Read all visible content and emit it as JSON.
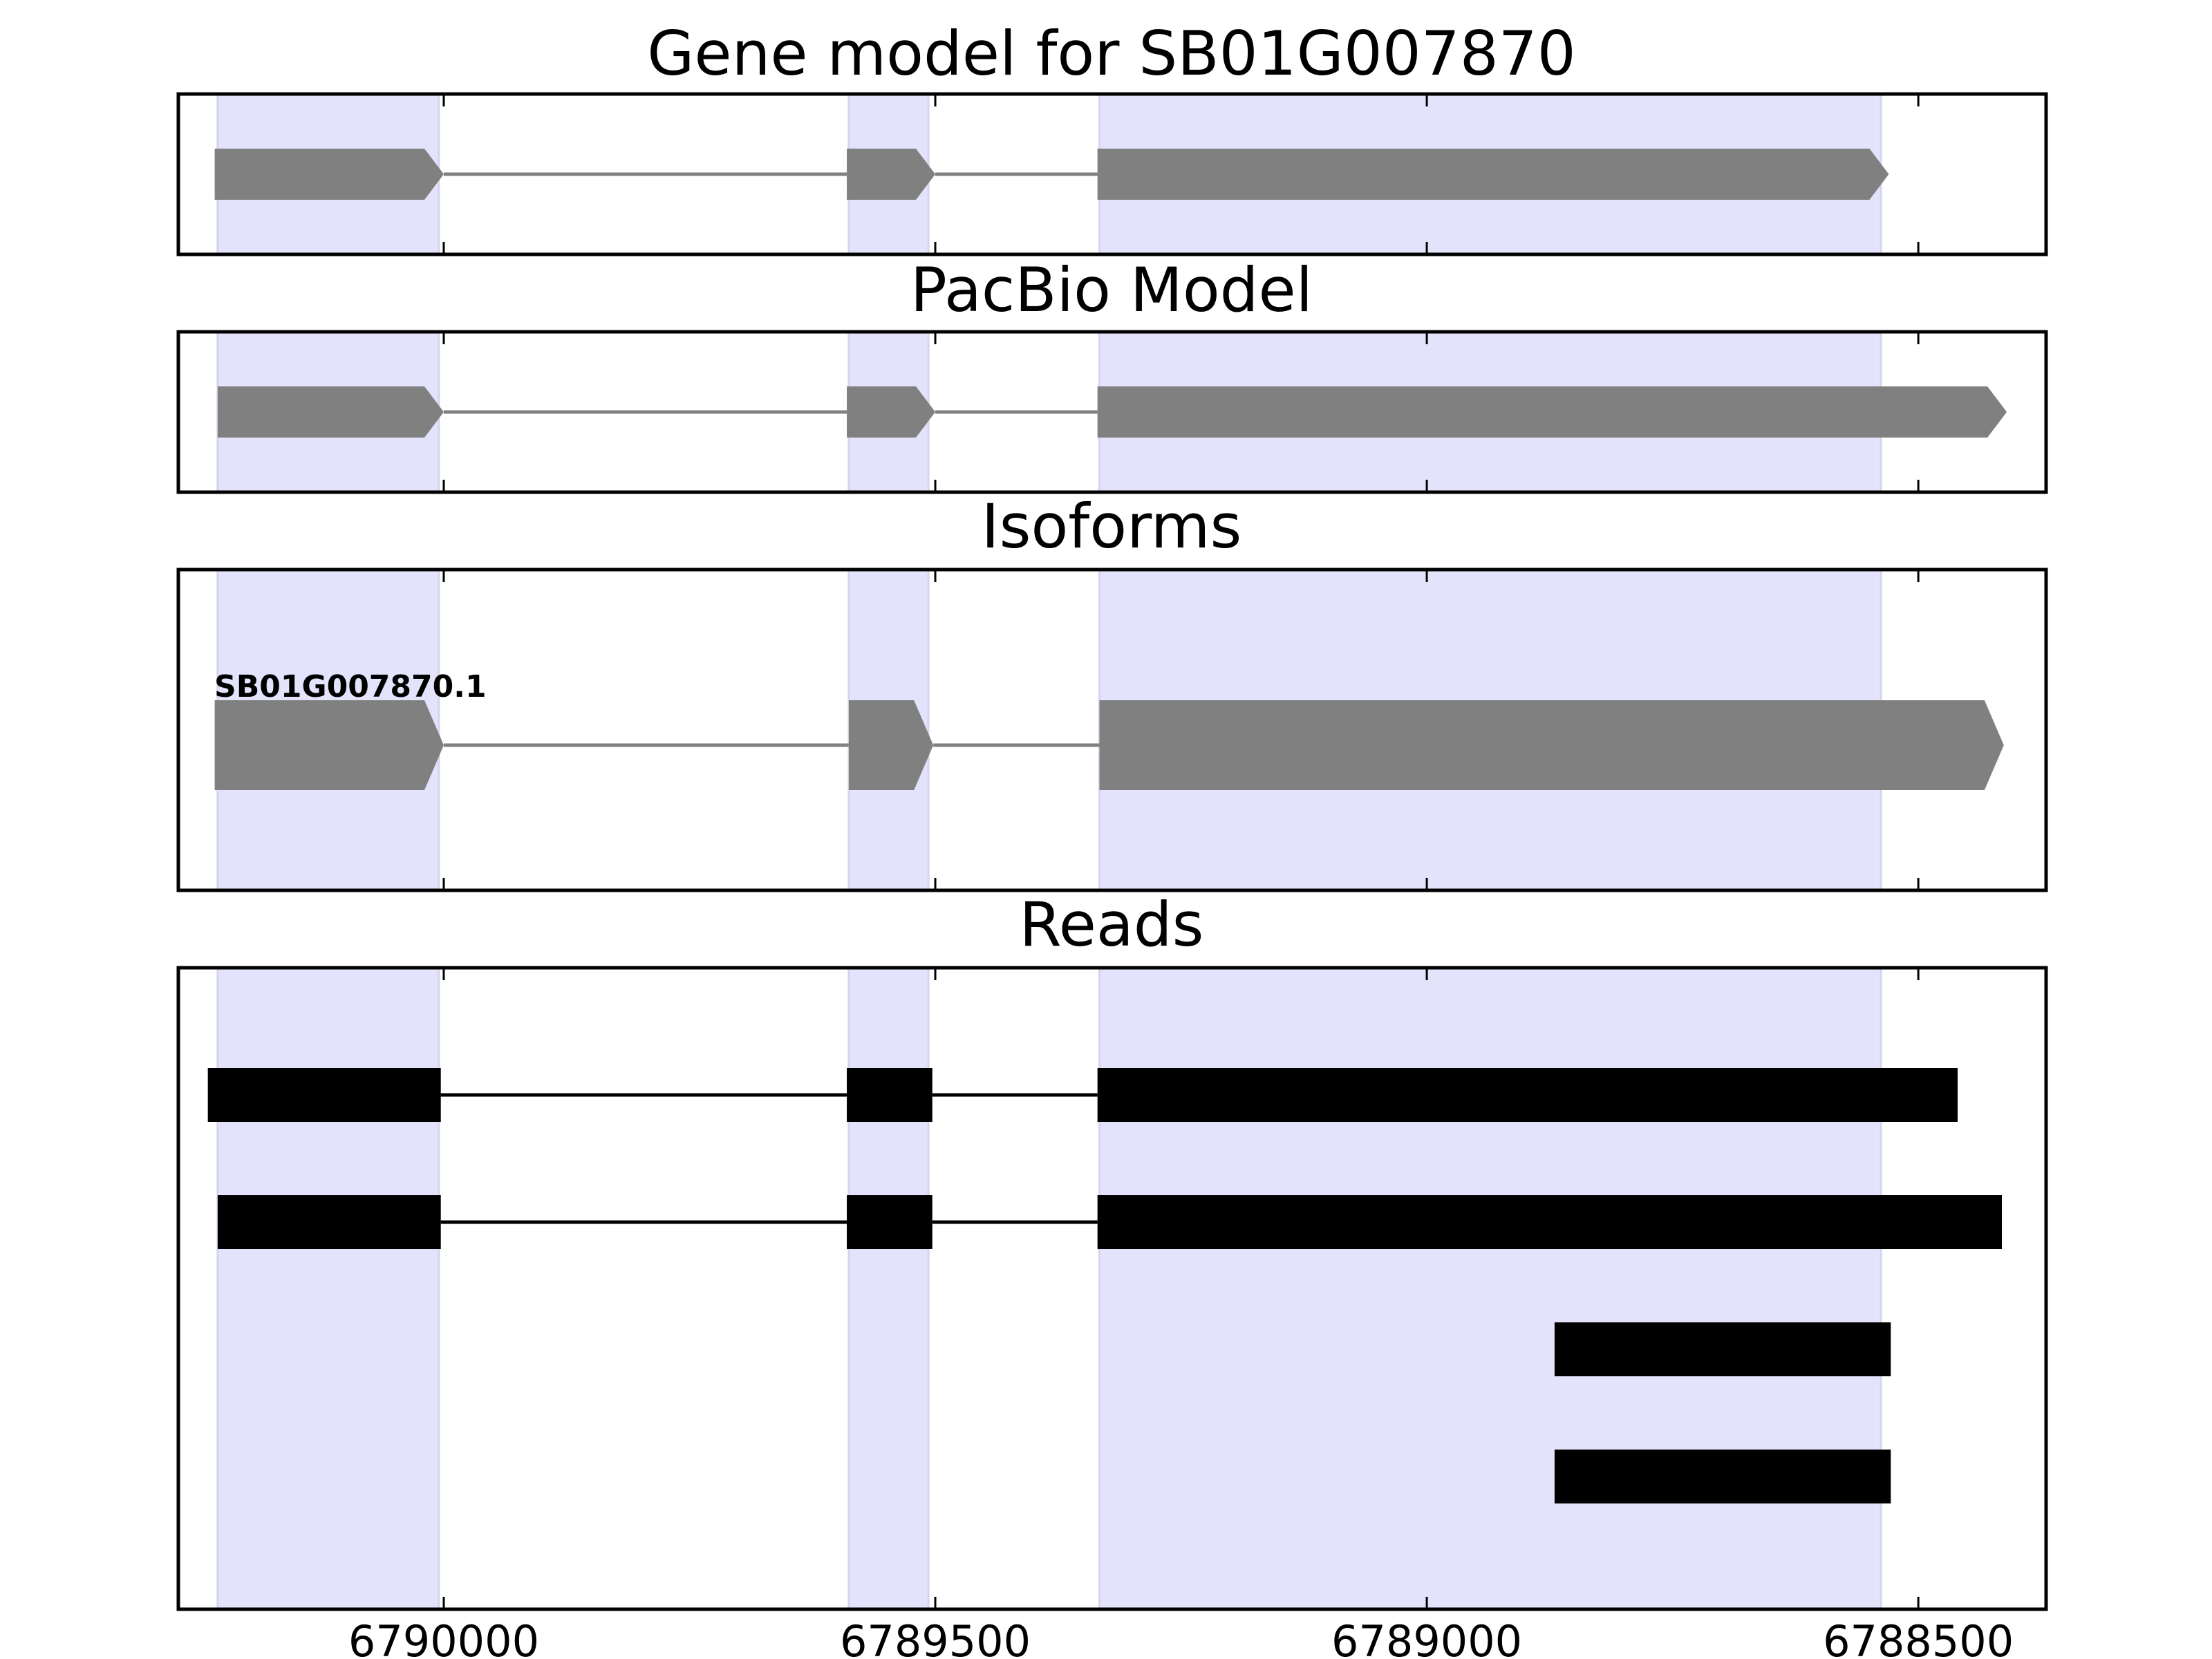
{
  "chart_data": {
    "type": "gene-track",
    "x_axis": {
      "reversed": true,
      "range": [
        6790270,
        6788370
      ],
      "ticks": [
        6790000,
        6789500,
        6789000,
        6788500
      ],
      "tick_labels": [
        "6790000",
        "6789500",
        "6789000",
        "6788500"
      ],
      "grid": false
    },
    "highlight_color": "#e3e3fc",
    "exon_bands": [
      {
        "start": 6790230,
        "end": 6790005
      },
      {
        "start": 6789588,
        "end": 6789507
      },
      {
        "start": 6789333,
        "end": 6788538
      }
    ],
    "panels": [
      {
        "id": "gene-model",
        "title": "Gene model for SB01G007870",
        "style": "arrow",
        "color": "#808080",
        "label": "",
        "exons": [
          {
            "start": 6790233,
            "end": 6790000
          },
          {
            "start": 6789590,
            "end": 6789500
          },
          {
            "start": 6789335,
            "end": 6788530
          }
        ]
      },
      {
        "id": "pacbio-model",
        "title": "PacBio Model",
        "style": "arrow",
        "color": "#808080",
        "label": "",
        "exons": [
          {
            "start": 6790230,
            "end": 6790000
          },
          {
            "start": 6789590,
            "end": 6789500
          },
          {
            "start": 6789335,
            "end": 6788410
          }
        ]
      },
      {
        "id": "isoforms",
        "title": "Isoforms",
        "style": "arrow",
        "color": "#808080",
        "label": "SB01G007870.1",
        "exons": [
          {
            "start": 6790233,
            "end": 6790000
          },
          {
            "start": 6789588,
            "end": 6789502
          },
          {
            "start": 6789333,
            "end": 6788413
          }
        ]
      },
      {
        "id": "reads",
        "title": "Reads",
        "style": "block",
        "color": "#000000",
        "label": "",
        "reads": [
          [
            {
              "start": 6790240,
              "end": 6790003
            },
            {
              "start": 6789590,
              "end": 6789503
            },
            {
              "start": 6789335,
              "end": 6788460
            }
          ],
          [
            {
              "start": 6790230,
              "end": 6790003
            },
            {
              "start": 6789590,
              "end": 6789503
            },
            {
              "start": 6789335,
              "end": 6788415
            }
          ],
          [
            {
              "start": 6788870,
              "end": 6788528
            }
          ],
          [
            {
              "start": 6788870,
              "end": 6788528
            }
          ]
        ]
      }
    ]
  }
}
